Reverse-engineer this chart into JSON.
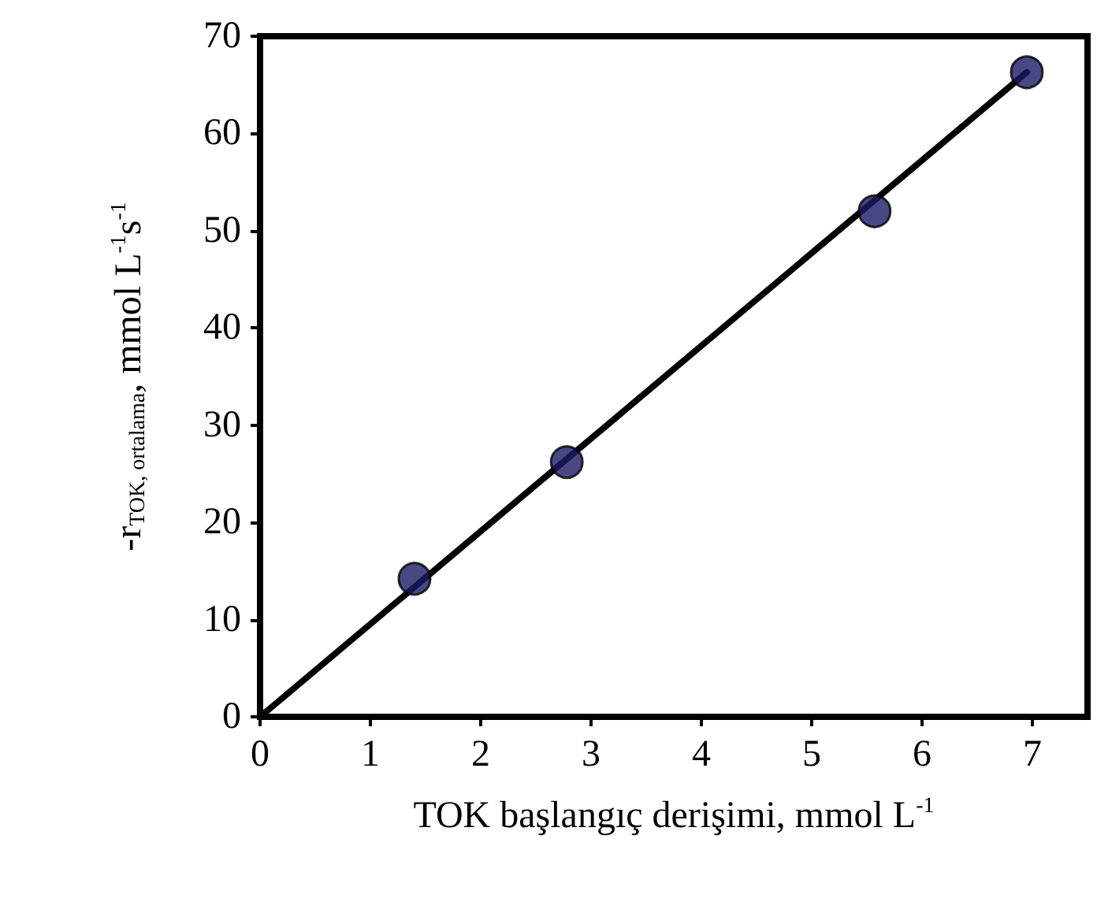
{
  "chart_data": {
    "type": "scatter",
    "xlabel": "TOK başlangıç derişimi, mmol L$^{-1}$",
    "ylabel": "-r$_{TOK, ortalama}$, mmol L$^{-1}$s$^{-1}$",
    "xlim": [
      0,
      7.5
    ],
    "xticks": [
      0,
      1,
      2,
      3,
      4,
      5,
      6,
      7
    ],
    "ylim": [
      0,
      70
    ],
    "yticks": [
      0,
      10,
      20,
      30,
      40,
      50,
      60,
      70
    ],
    "grid": false,
    "marker": "circle",
    "line_style": "solid",
    "series": [
      {
        "type": "line",
        "marker": "none",
        "color": "#000000",
        "x": [
          0,
          6.95
        ],
        "values": [
          0,
          66.3
        ]
      },
      {
        "color": "#1a1a66",
        "x": [
          1.4,
          2.78,
          5.57,
          6.95
        ],
        "values": [
          14.2,
          26.2,
          52,
          66.3
        ]
      }
    ]
  }
}
